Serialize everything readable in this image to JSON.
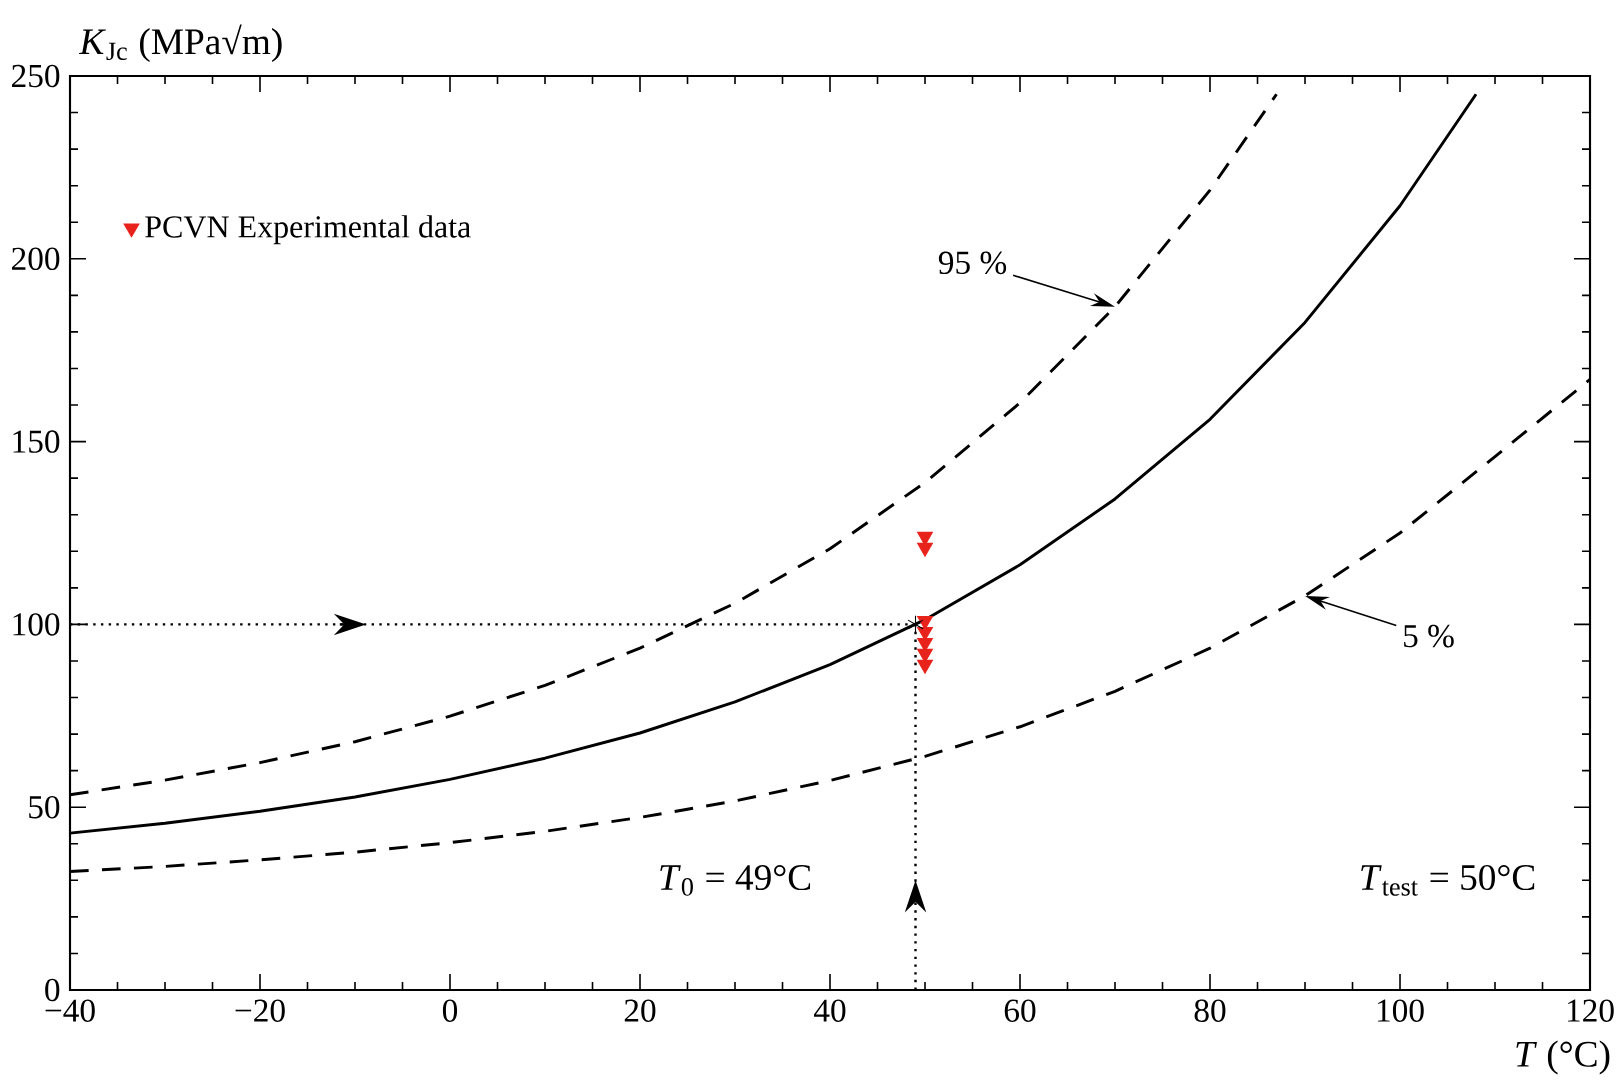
{
  "chart_data": {
    "type": "line",
    "xlabel": "*T* (°C)",
    "ylabel": "*K*$_{Jc}$ (MPa√m)",
    "xlim": [
      -40,
      120
    ],
    "xticks": [
      {
        "value": -40,
        "label": "−40"
      },
      {
        "value": -20,
        "label": "−20"
      },
      0,
      20,
      40,
      60,
      80,
      100,
      120
    ],
    "ylim": [
      0,
      250
    ],
    "yticks": [
      0,
      50,
      100,
      150,
      200,
      250
    ],
    "grid": false,
    "legend": "top left",
    "series": [
      {
        "color": "#000000",
        "line_style": "solid",
        "x": [
          -40,
          -30,
          -20,
          -10,
          0,
          10,
          20,
          30,
          40,
          50,
          60,
          70,
          80,
          90,
          100,
          108
        ],
        "values": [
          42.9,
          45.6,
          48.9,
          52.8,
          57.6,
          63.4,
          70.3,
          78.8,
          89.0,
          101.3,
          116.3,
          134.3,
          156.1,
          182.6,
          214.5,
          245
        ]
      },
      {
        "color": "#000000",
        "line_style": "dashed",
        "x": [
          -40,
          -30,
          -20,
          -10,
          0,
          10,
          20,
          30,
          40,
          50,
          60,
          70,
          80,
          87
        ],
        "values": [
          53.4,
          57.4,
          62.2,
          67.9,
          74.9,
          83.3,
          93.5,
          105.8,
          120.7,
          138.8,
          160.6,
          186.9,
          218.8,
          245
        ]
      },
      {
        "color": "#000000",
        "line_style": "dashed",
        "x": [
          -40,
          -30,
          -20,
          -10,
          0,
          10,
          20,
          30,
          40,
          50,
          60,
          70,
          80,
          90,
          100,
          110,
          120
        ],
        "values": [
          32.4,
          33.8,
          35.6,
          37.7,
          40.3,
          43.4,
          47.2,
          51.7,
          57.3,
          63.9,
          72.0,
          81.7,
          93.5,
          107.8,
          125.0,
          145.9,
          167
        ]
      },
      {
        "type": "scatter",
        "name": "PCVN Experimental data",
        "color": "#e8231c",
        "marker": "triangle",
        "x": [
          50,
          50,
          50,
          50,
          50,
          50,
          50
        ],
        "values": [
          124,
          121,
          101,
          98,
          95,
          92,
          89
        ]
      },
      {
        "type": "scatter",
        "color": "#000000",
        "marker": "cross",
        "x": [
          49
        ],
        "values": [
          100
        ]
      }
    ],
    "ref_lines": [
      {
        "axis": "y",
        "value": 100,
        "line_style": "dotted"
      },
      {
        "axis": "x",
        "value": 49,
        "line_style": "dotted"
      }
    ],
    "annotations": [
      {
        "text": "95 %",
        "x": 70,
        "y": 186.9
      },
      {
        "text": "5 %",
        "x": 90,
        "y": 107.8
      },
      "*T*$_{0}$ = 49°C",
      "*T*$_{test}$ = 50°C"
    ]
  }
}
